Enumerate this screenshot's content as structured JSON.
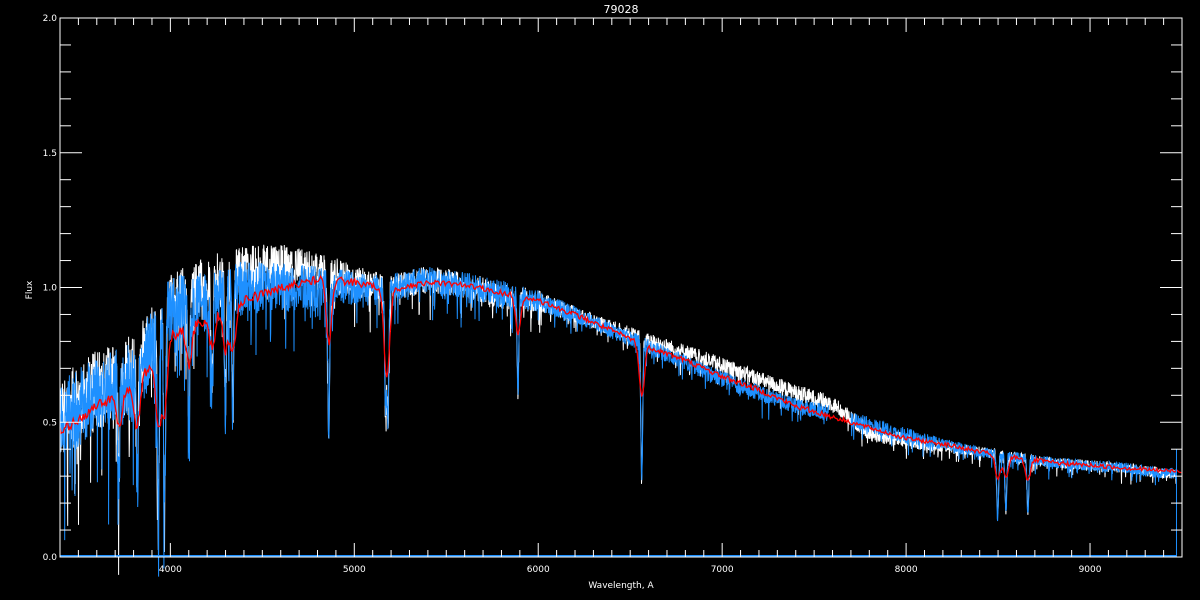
{
  "chart_data": {
    "type": "line",
    "title": "79028",
    "xlabel": "Wavelength, A",
    "ylabel": "Flux",
    "xlim": [
      3400,
      9500
    ],
    "ylim": [
      0.0,
      2.0
    ],
    "xticks": [
      4000,
      5000,
      6000,
      7000,
      8000,
      9000
    ],
    "xtick_labels": [
      "4000",
      "5000",
      "6000",
      "7000",
      "8000",
      "9000"
    ],
    "yticks": [
      0.0,
      0.5,
      1.0,
      1.5,
      2.0
    ],
    "ytick_labels": [
      "0.0",
      "0.5",
      "1.0",
      "1.5",
      "2.0"
    ],
    "x_minor_step": 100,
    "y_minor_step": 0.1,
    "grid": false,
    "background": "#000000",
    "axis_color": "#ffffff",
    "x": [
      3400,
      3600,
      3800,
      4000,
      4200,
      4400,
      4600,
      4800,
      5000,
      5200,
      5400,
      5600,
      5800,
      6000,
      6200,
      6400,
      6600,
      6800,
      7000,
      7200,
      7400,
      7600,
      7800,
      8000,
      8200,
      8400,
      8600,
      8800,
      9000,
      9200,
      9400
    ],
    "series": [
      {
        "color": "#ffffff",
        "values": [
          0.52,
          0.62,
          0.68,
          0.95,
          1.02,
          1.06,
          1.08,
          1.07,
          1.02,
          1.0,
          1.03,
          1.01,
          0.97,
          0.95,
          0.9,
          0.85,
          0.8,
          0.76,
          0.71,
          0.66,
          0.61,
          0.57,
          0.46,
          0.43,
          0.41,
          0.39,
          0.37,
          0.35,
          0.34,
          0.33,
          0.31
        ],
        "noise": [
          0.15,
          0.15,
          0.15,
          0.1,
          0.1,
          0.1,
          0.08,
          0.07,
          0.06,
          0.05,
          0.05,
          0.05,
          0.05,
          0.04,
          0.03,
          0.03,
          0.03,
          0.03,
          0.03,
          0.03,
          0.03,
          0.03,
          0.03,
          0.03,
          0.02,
          0.02,
          0.02,
          0.02,
          0.02,
          0.02,
          0.02
        ],
        "range": [
          3400,
          9470
        ]
      },
      {
        "color": "#1e90ff",
        "values": [
          0.5,
          0.6,
          0.65,
          0.92,
          0.95,
          1.0,
          1.0,
          1.0,
          1.0,
          1.0,
          1.03,
          1.01,
          0.98,
          0.95,
          0.9,
          0.84,
          0.78,
          0.72,
          0.66,
          0.61,
          0.56,
          0.53,
          0.49,
          0.45,
          0.42,
          0.39,
          0.37,
          0.35,
          0.34,
          0.33,
          0.31
        ],
        "noise": [
          0.15,
          0.15,
          0.15,
          0.12,
          0.12,
          0.1,
          0.09,
          0.08,
          0.06,
          0.05,
          0.05,
          0.05,
          0.05,
          0.04,
          0.03,
          0.03,
          0.03,
          0.03,
          0.03,
          0.03,
          0.03,
          0.03,
          0.03,
          0.03,
          0.02,
          0.02,
          0.02,
          0.02,
          0.02,
          0.02,
          0.02
        ],
        "range": [
          3400,
          9470
        ],
        "gap": [
          7580,
          7700
        ]
      },
      {
        "color": "#ff0000",
        "values": [
          0.46,
          0.56,
          0.62,
          0.82,
          0.88,
          0.95,
          1.0,
          1.03,
          1.02,
          0.99,
          1.02,
          1.01,
          0.98,
          0.95,
          0.9,
          0.84,
          0.78,
          0.73,
          0.67,
          0.62,
          0.56,
          0.52,
          0.48,
          0.44,
          0.42,
          0.39,
          0.37,
          0.35,
          0.34,
          0.33,
          0.32
        ],
        "noise": [
          0.02,
          0.02,
          0.02,
          0.02,
          0.02,
          0.02,
          0.015,
          0.015,
          0.015,
          0.01,
          0.01,
          0.01,
          0.01,
          0.01,
          0.01,
          0.01,
          0.01,
          0.01,
          0.01,
          0.01,
          0.01,
          0.01,
          0.008,
          0.008,
          0.008,
          0.008,
          0.008,
          0.008,
          0.008,
          0.008,
          0.008
        ],
        "range": [
          3400,
          9500
        ]
      }
    ],
    "absorption_lines": [
      {
        "wavelength": 3720,
        "min_flux": 0.3
      },
      {
        "wavelength": 3820,
        "min_flux": 0.25
      },
      {
        "wavelength": 3934,
        "min_flux": 0.1
      },
      {
        "wavelength": 3968,
        "min_flux": 0.12
      },
      {
        "wavelength": 4101,
        "min_flux": 0.5
      },
      {
        "wavelength": 4227,
        "min_flux": 0.6
      },
      {
        "wavelength": 4300,
        "min_flux": 0.55
      },
      {
        "wavelength": 4340,
        "min_flux": 0.5
      },
      {
        "wavelength": 4861,
        "min_flux": 0.45
      },
      {
        "wavelength": 5170,
        "min_flux": 0.55
      },
      {
        "wavelength": 5183,
        "min_flux": 0.53
      },
      {
        "wavelength": 5890,
        "min_flux": 0.63
      },
      {
        "wavelength": 6563,
        "min_flux": 0.3
      },
      {
        "wavelength": 8498,
        "min_flux": 0.15
      },
      {
        "wavelength": 8542,
        "min_flux": 0.17
      },
      {
        "wavelength": 8662,
        "min_flux": 0.17
      }
    ]
  }
}
